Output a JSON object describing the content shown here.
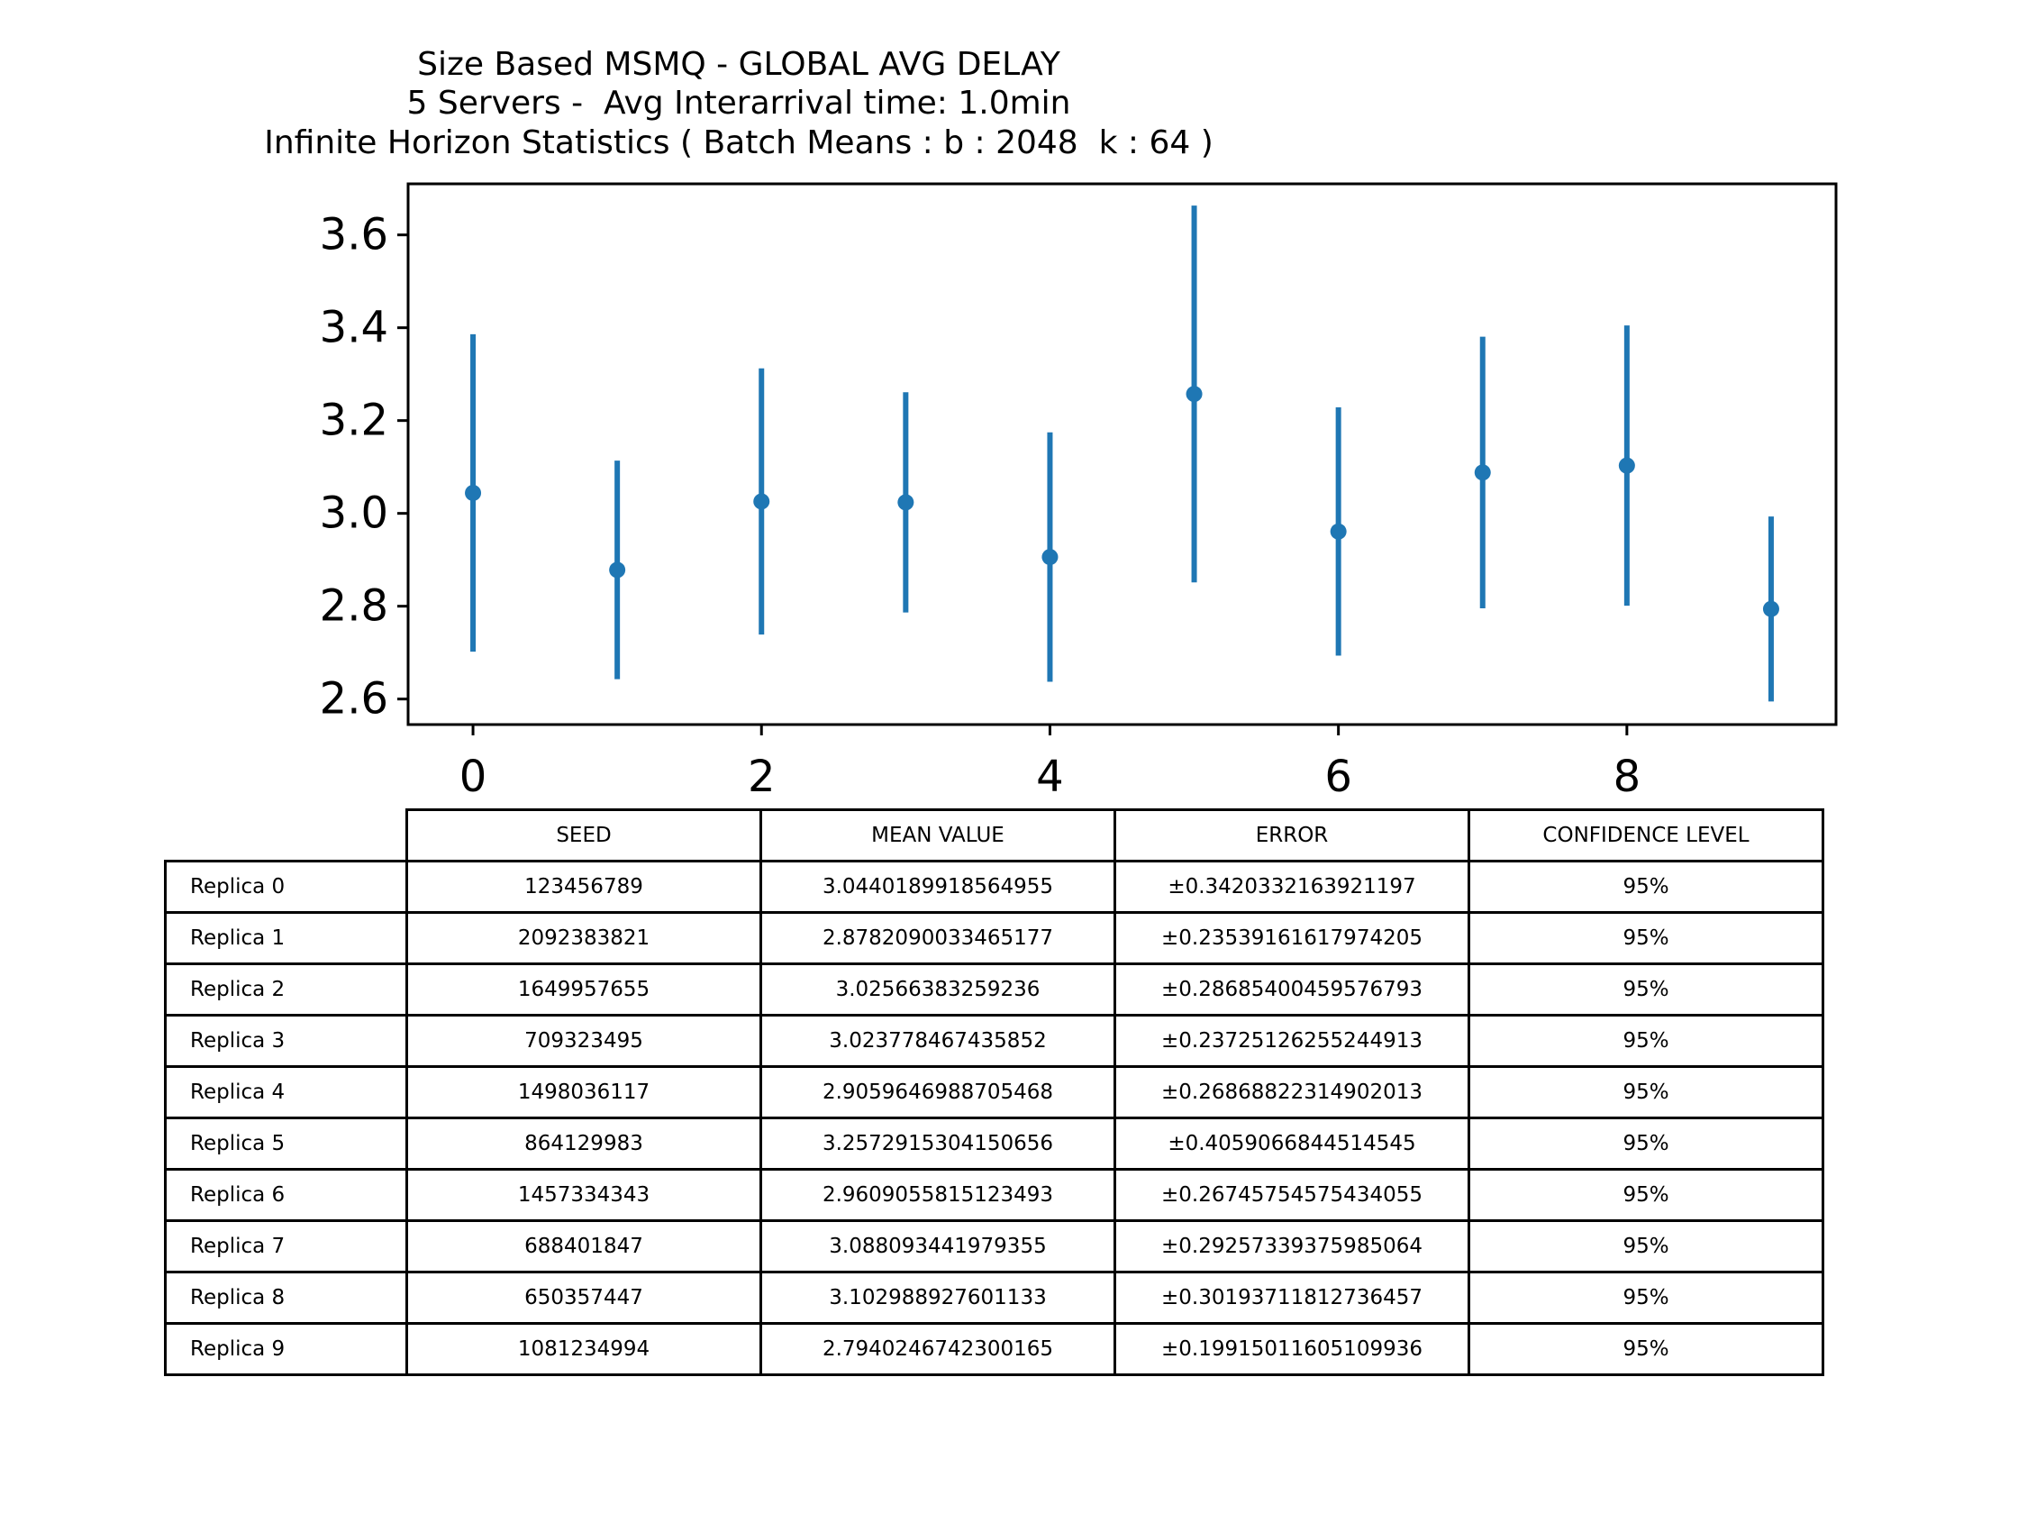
{
  "chart_data": {
    "type": "errorbar",
    "title_lines": [
      "Size Based MSMQ - GLOBAL AVG DELAY",
      "5 Servers -  Avg Interarrival time: 1.0min",
      "Infinite Horizon Statistics ( Batch Means : b : 2048  k : 64 )"
    ],
    "x": [
      0,
      1,
      2,
      3,
      4,
      5,
      6,
      7,
      8,
      9
    ],
    "y": [
      3.0440189918564955,
      2.8782090033465177,
      3.02566383259236,
      3.023778467435852,
      2.9059646988705468,
      3.2572915304150656,
      2.9609055815123493,
      3.088093441979355,
      3.102988927601133,
      2.7940246742300165
    ],
    "yerr": [
      0.3420332163921197,
      0.23539161617974205,
      0.28685400459576793,
      0.23725126255244913,
      0.26868822314902013,
      0.4059066844514545,
      0.26745754575434055,
      0.29257339375985064,
      0.30193711812736457,
      0.19915011605109936
    ],
    "xlim": [
      -0.45,
      9.45
    ],
    "ylim": [
      2.545,
      3.71
    ],
    "x_ticks": [
      "0",
      "2",
      "4",
      "6",
      "8"
    ],
    "y_ticks": [
      "2.6",
      "2.8",
      "3.0",
      "3.2",
      "3.4",
      "3.6"
    ],
    "color": "#1f77b4",
    "grid": false
  },
  "table": {
    "headers": [
      "SEED",
      "MEAN VALUE",
      "ERROR",
      "CONFIDENCE LEVEL"
    ],
    "rows": [
      {
        "label": "Replica 0",
        "seed": "123456789",
        "mean": "3.0440189918564955",
        "error": "±0.3420332163921197",
        "confidence": "95%"
      },
      {
        "label": "Replica 1",
        "seed": "2092383821",
        "mean": "2.8782090033465177",
        "error": "±0.23539161617974205",
        "confidence": "95%"
      },
      {
        "label": "Replica 2",
        "seed": "1649957655",
        "mean": "3.02566383259236",
        "error": "±0.28685400459576793",
        "confidence": "95%"
      },
      {
        "label": "Replica 3",
        "seed": "709323495",
        "mean": "3.023778467435852",
        "error": "±0.23725126255244913",
        "confidence": "95%"
      },
      {
        "label": "Replica 4",
        "seed": "1498036117",
        "mean": "2.9059646988705468",
        "error": "±0.26868822314902013",
        "confidence": "95%"
      },
      {
        "label": "Replica 5",
        "seed": "864129983",
        "mean": "3.2572915304150656",
        "error": "±0.4059066844514545",
        "confidence": "95%"
      },
      {
        "label": "Replica 6",
        "seed": "1457334343",
        "mean": "2.9609055815123493",
        "error": "±0.26745754575434055",
        "confidence": "95%"
      },
      {
        "label": "Replica 7",
        "seed": "688401847",
        "mean": "3.088093441979355",
        "error": "±0.29257339375985064",
        "confidence": "95%"
      },
      {
        "label": "Replica 8",
        "seed": "650357447",
        "mean": "3.102988927601133",
        "error": "±0.30193711812736457",
        "confidence": "95%"
      },
      {
        "label": "Replica 9",
        "seed": "1081234994",
        "mean": "2.7940246742300165",
        "error": "±0.19915011605109936",
        "confidence": "95%"
      }
    ]
  }
}
